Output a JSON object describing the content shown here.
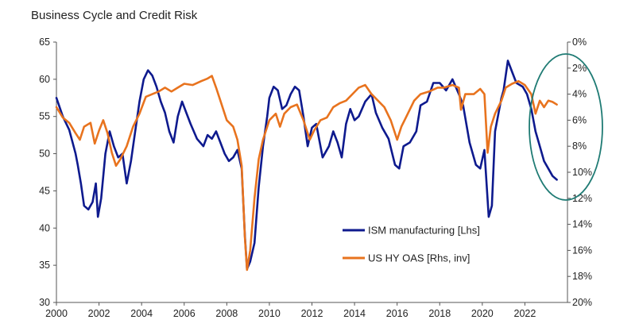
{
  "chart_data": {
    "type": "line",
    "title": "Business Cycle and Credit Risk",
    "x_ticks": [
      "2000",
      "2002",
      "2004",
      "2006",
      "2008",
      "2010",
      "2012",
      "2014",
      "2016",
      "2018",
      "2020",
      "2022"
    ],
    "x_range": [
      2000,
      2024
    ],
    "y_left": {
      "ticks": [
        "65",
        "60",
        "55",
        "50",
        "45",
        "40",
        "35",
        "30"
      ],
      "range": [
        30,
        65
      ]
    },
    "y_right": {
      "ticks": [
        "0%",
        "2%",
        "4%",
        "6%",
        "8%",
        "10%",
        "12%",
        "14%",
        "16%",
        "18%",
        "20%"
      ],
      "range": [
        0,
        20
      ],
      "inverted": true
    },
    "legend_position": "inside-lower-right",
    "series": [
      {
        "name": "ISM manufacturing [Lhs]",
        "axis": "left",
        "color": "#0e1a8e",
        "points": [
          [
            2000.0,
            57.5
          ],
          [
            2000.3,
            55.0
          ],
          [
            2000.6,
            53.2
          ],
          [
            2000.9,
            50.0
          ],
          [
            2001.0,
            48.5
          ],
          [
            2001.15,
            46.0
          ],
          [
            2001.3,
            43.0
          ],
          [
            2001.5,
            42.5
          ],
          [
            2001.7,
            43.5
          ],
          [
            2001.85,
            46.0
          ],
          [
            2001.95,
            41.5
          ],
          [
            2002.1,
            44.0
          ],
          [
            2002.3,
            50.0
          ],
          [
            2002.5,
            53.0
          ],
          [
            2002.7,
            51.0
          ],
          [
            2002.9,
            49.5
          ],
          [
            2003.1,
            50.0
          ],
          [
            2003.3,
            46.0
          ],
          [
            2003.5,
            49.0
          ],
          [
            2003.7,
            53.0
          ],
          [
            2003.9,
            57.0
          ],
          [
            2004.1,
            60.0
          ],
          [
            2004.3,
            61.2
          ],
          [
            2004.5,
            60.5
          ],
          [
            2004.7,
            59.0
          ],
          [
            2004.9,
            57.0
          ],
          [
            2005.1,
            55.5
          ],
          [
            2005.3,
            53.0
          ],
          [
            2005.5,
            51.5
          ],
          [
            2005.7,
            55.0
          ],
          [
            2005.9,
            57.0
          ],
          [
            2006.1,
            55.5
          ],
          [
            2006.3,
            54.0
          ],
          [
            2006.6,
            52.0
          ],
          [
            2006.9,
            51.0
          ],
          [
            2007.1,
            52.5
          ],
          [
            2007.3,
            52.0
          ],
          [
            2007.5,
            53.0
          ],
          [
            2007.7,
            51.5
          ],
          [
            2007.9,
            50.0
          ],
          [
            2008.1,
            49.0
          ],
          [
            2008.3,
            49.5
          ],
          [
            2008.5,
            50.5
          ],
          [
            2008.7,
            48.0
          ],
          [
            2008.85,
            39.0
          ],
          [
            2008.95,
            34.5
          ],
          [
            2009.1,
            35.5
          ],
          [
            2009.3,
            38.0
          ],
          [
            2009.5,
            45.5
          ],
          [
            2009.7,
            51.0
          ],
          [
            2009.9,
            55.0
          ],
          [
            2010.0,
            57.5
          ],
          [
            2010.2,
            59.0
          ],
          [
            2010.4,
            58.5
          ],
          [
            2010.6,
            56.0
          ],
          [
            2010.8,
            56.5
          ],
          [
            2011.0,
            58.0
          ],
          [
            2011.2,
            59.0
          ],
          [
            2011.4,
            58.5
          ],
          [
            2011.6,
            55.0
          ],
          [
            2011.8,
            51.0
          ],
          [
            2012.0,
            53.5
          ],
          [
            2012.2,
            54.0
          ],
          [
            2012.5,
            49.5
          ],
          [
            2012.8,
            51.0
          ],
          [
            2013.0,
            53.0
          ],
          [
            2013.2,
            51.5
          ],
          [
            2013.4,
            49.5
          ],
          [
            2013.6,
            54.0
          ],
          [
            2013.8,
            56.0
          ],
          [
            2014.0,
            54.5
          ],
          [
            2014.2,
            55.0
          ],
          [
            2014.5,
            57.0
          ],
          [
            2014.8,
            58.0
          ],
          [
            2015.0,
            55.5
          ],
          [
            2015.3,
            53.5
          ],
          [
            2015.6,
            52.0
          ],
          [
            2015.9,
            48.5
          ],
          [
            2016.1,
            48.0
          ],
          [
            2016.3,
            51.0
          ],
          [
            2016.6,
            51.5
          ],
          [
            2016.9,
            53.0
          ],
          [
            2017.1,
            56.5
          ],
          [
            2017.4,
            57.0
          ],
          [
            2017.7,
            59.5
          ],
          [
            2018.0,
            59.5
          ],
          [
            2018.3,
            58.5
          ],
          [
            2018.6,
            60.0
          ],
          [
            2018.9,
            58.0
          ],
          [
            2019.1,
            56.5
          ],
          [
            2019.4,
            51.5
          ],
          [
            2019.7,
            48.5
          ],
          [
            2019.9,
            48.0
          ],
          [
            2020.1,
            50.5
          ],
          [
            2020.3,
            41.5
          ],
          [
            2020.45,
            43.0
          ],
          [
            2020.6,
            53.0
          ],
          [
            2020.9,
            57.5
          ],
          [
            2021.0,
            58.5
          ],
          [
            2021.2,
            62.5
          ],
          [
            2021.4,
            61.0
          ],
          [
            2021.6,
            59.5
          ],
          [
            2021.9,
            59.0
          ],
          [
            2022.1,
            58.0
          ],
          [
            2022.3,
            56.0
          ],
          [
            2022.5,
            53.0
          ],
          [
            2022.7,
            51.0
          ],
          [
            2022.9,
            49.0
          ],
          [
            2023.1,
            48.0
          ],
          [
            2023.3,
            47.0
          ],
          [
            2023.5,
            46.5
          ]
        ]
      },
      {
        "name": "US HY OAS [Rhs, inv]",
        "axis": "right",
        "color": "#e8731e",
        "points": [
          [
            2000.0,
            5.0
          ],
          [
            2000.3,
            5.8
          ],
          [
            2000.6,
            6.2
          ],
          [
            2000.9,
            7.0
          ],
          [
            2001.1,
            7.5
          ],
          [
            2001.3,
            6.5
          ],
          [
            2001.6,
            6.2
          ],
          [
            2001.8,
            7.8
          ],
          [
            2002.0,
            6.8
          ],
          [
            2002.2,
            6.0
          ],
          [
            2002.4,
            7.0
          ],
          [
            2002.6,
            8.5
          ],
          [
            2002.8,
            9.5
          ],
          [
            2003.0,
            9.0
          ],
          [
            2003.3,
            8.0
          ],
          [
            2003.6,
            6.5
          ],
          [
            2003.9,
            5.5
          ],
          [
            2004.2,
            4.2
          ],
          [
            2004.5,
            4.0
          ],
          [
            2004.8,
            3.8
          ],
          [
            2005.1,
            3.5
          ],
          [
            2005.4,
            3.8
          ],
          [
            2005.7,
            3.5
          ],
          [
            2006.0,
            3.2
          ],
          [
            2006.4,
            3.3
          ],
          [
            2006.8,
            3.0
          ],
          [
            2007.1,
            2.8
          ],
          [
            2007.3,
            2.6
          ],
          [
            2007.5,
            3.5
          ],
          [
            2007.7,
            4.5
          ],
          [
            2008.0,
            6.0
          ],
          [
            2008.3,
            6.5
          ],
          [
            2008.5,
            7.5
          ],
          [
            2008.7,
            9.5
          ],
          [
            2008.85,
            15.0
          ],
          [
            2008.95,
            17.5
          ],
          [
            2009.1,
            16.0
          ],
          [
            2009.3,
            12.0
          ],
          [
            2009.5,
            9.0
          ],
          [
            2009.7,
            7.5
          ],
          [
            2010.0,
            6.0
          ],
          [
            2010.3,
            5.5
          ],
          [
            2010.5,
            6.5
          ],
          [
            2010.7,
            5.5
          ],
          [
            2011.0,
            5.0
          ],
          [
            2011.3,
            4.8
          ],
          [
            2011.6,
            6.0
          ],
          [
            2011.9,
            7.5
          ],
          [
            2012.1,
            6.8
          ],
          [
            2012.4,
            6.0
          ],
          [
            2012.7,
            5.8
          ],
          [
            2013.0,
            5.0
          ],
          [
            2013.3,
            4.7
          ],
          [
            2013.6,
            4.5
          ],
          [
            2013.9,
            4.0
          ],
          [
            2014.2,
            3.5
          ],
          [
            2014.5,
            3.3
          ],
          [
            2014.8,
            4.0
          ],
          [
            2015.1,
            4.5
          ],
          [
            2015.4,
            5.0
          ],
          [
            2015.7,
            6.0
          ],
          [
            2016.0,
            7.5
          ],
          [
            2016.2,
            6.5
          ],
          [
            2016.5,
            5.5
          ],
          [
            2016.8,
            4.5
          ],
          [
            2017.1,
            4.0
          ],
          [
            2017.5,
            3.8
          ],
          [
            2017.9,
            3.5
          ],
          [
            2018.2,
            3.5
          ],
          [
            2018.6,
            3.3
          ],
          [
            2018.9,
            3.5
          ],
          [
            2019.0,
            5.2
          ],
          [
            2019.2,
            4.0
          ],
          [
            2019.6,
            4.0
          ],
          [
            2019.9,
            3.6
          ],
          [
            2020.1,
            4.0
          ],
          [
            2020.25,
            8.5
          ],
          [
            2020.4,
            6.5
          ],
          [
            2020.6,
            5.5
          ],
          [
            2020.9,
            4.5
          ],
          [
            2021.1,
            3.5
          ],
          [
            2021.4,
            3.2
          ],
          [
            2021.7,
            3.0
          ],
          [
            2022.0,
            3.3
          ],
          [
            2022.3,
            4.0
          ],
          [
            2022.5,
            5.5
          ],
          [
            2022.7,
            4.5
          ],
          [
            2022.9,
            5.0
          ],
          [
            2023.1,
            4.5
          ],
          [
            2023.3,
            4.6
          ],
          [
            2023.5,
            4.8
          ]
        ]
      }
    ],
    "annotation": {
      "shape": "ellipse",
      "color": "#1f7b74"
    }
  }
}
